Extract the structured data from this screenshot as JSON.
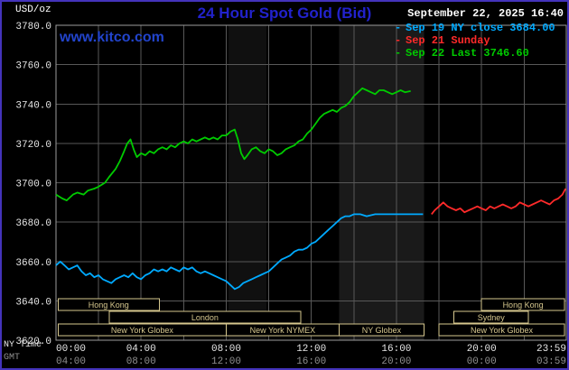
{
  "header": {
    "unit": "USD/oz",
    "title": "24 Hour Spot Gold (Bid)",
    "timestamp": "September 22, 2025 16:40",
    "watermark": "www.kitco.com"
  },
  "legend": {
    "items": [
      {
        "label": "Sep 19 NY close 3684.00",
        "color": "#00aaff"
      },
      {
        "label": "Sep 21 Sunday",
        "color": "#ff2a2a"
      },
      {
        "label": "Sep 22 Last 3746.60",
        "color": "#00cc00"
      }
    ]
  },
  "axes": {
    "x_row1_label": "NY Time",
    "x_row2_label": "GMT",
    "ny_ticks": [
      {
        "hour": 0,
        "label": "00:00"
      },
      {
        "hour": 4,
        "label": "04:00"
      },
      {
        "hour": 8,
        "label": "08:00"
      },
      {
        "hour": 12,
        "label": "12:00"
      },
      {
        "hour": 16,
        "label": "16:00"
      },
      {
        "hour": 20,
        "label": "20:00"
      },
      {
        "hour": 23.983,
        "label": "23:59"
      }
    ],
    "gmt_ticks": [
      {
        "hour": 0,
        "label": "04:00"
      },
      {
        "hour": 4,
        "label": "08:00"
      },
      {
        "hour": 8,
        "label": "12:00"
      },
      {
        "hour": 12,
        "label": "16:00"
      },
      {
        "hour": 16,
        "label": "20:00"
      },
      {
        "hour": 20,
        "label": "00:00"
      },
      {
        "hour": 23.983,
        "label": "03:59"
      }
    ]
  },
  "chart_data": {
    "type": "line",
    "title": "24 Hour Spot Gold (Bid)",
    "ylabel": "USD/oz",
    "xlim": [
      0,
      23.983
    ],
    "ylim": [
      3620,
      3780
    ],
    "grid": true,
    "legend_position": "top-right",
    "y_ticks": [
      {
        "value": 3780,
        "label": "3780.0"
      },
      {
        "value": 3760,
        "label": "3760.0"
      },
      {
        "value": 3740,
        "label": "3740.0"
      },
      {
        "value": 3720,
        "label": "3720.0"
      },
      {
        "value": 3700,
        "label": "3700.0"
      },
      {
        "value": 3680,
        "label": "3680.0"
      },
      {
        "value": 3660,
        "label": "3660.0"
      },
      {
        "value": 3640,
        "label": "3640.0"
      },
      {
        "value": 3620,
        "label": "3620.0"
      }
    ],
    "series": [
      {
        "key": "sep19",
        "name": "Sep 19 NY close",
        "close": 3684.0,
        "color": "#00aaff",
        "points": [
          [
            0,
            3658
          ],
          [
            0.2,
            3660
          ],
          [
            0.4,
            3658
          ],
          [
            0.6,
            3656
          ],
          [
            0.8,
            3657
          ],
          [
            1.0,
            3658
          ],
          [
            1.2,
            3655
          ],
          [
            1.4,
            3653
          ],
          [
            1.6,
            3654
          ],
          [
            1.8,
            3652
          ],
          [
            2.0,
            3653
          ],
          [
            2.2,
            3651
          ],
          [
            2.4,
            3650
          ],
          [
            2.6,
            3649
          ],
          [
            2.8,
            3651
          ],
          [
            3.0,
            3652
          ],
          [
            3.2,
            3653
          ],
          [
            3.4,
            3652
          ],
          [
            3.6,
            3654
          ],
          [
            3.8,
            3652
          ],
          [
            4.0,
            3651
          ],
          [
            4.2,
            3653
          ],
          [
            4.4,
            3654
          ],
          [
            4.6,
            3656
          ],
          [
            4.8,
            3655
          ],
          [
            5.0,
            3656
          ],
          [
            5.2,
            3655
          ],
          [
            5.4,
            3657
          ],
          [
            5.6,
            3656
          ],
          [
            5.8,
            3655
          ],
          [
            6.0,
            3657
          ],
          [
            6.2,
            3656
          ],
          [
            6.4,
            3657
          ],
          [
            6.6,
            3655
          ],
          [
            6.8,
            3654
          ],
          [
            7.0,
            3655
          ],
          [
            7.2,
            3654
          ],
          [
            7.4,
            3653
          ],
          [
            7.6,
            3652
          ],
          [
            7.8,
            3651
          ],
          [
            8.0,
            3650
          ],
          [
            8.2,
            3648
          ],
          [
            8.4,
            3646
          ],
          [
            8.6,
            3647
          ],
          [
            8.8,
            3649
          ],
          [
            9.0,
            3650
          ],
          [
            9.2,
            3651
          ],
          [
            9.4,
            3652
          ],
          [
            9.6,
            3653
          ],
          [
            9.8,
            3654
          ],
          [
            10.0,
            3655
          ],
          [
            10.2,
            3657
          ],
          [
            10.4,
            3659
          ],
          [
            10.6,
            3661
          ],
          [
            10.8,
            3662
          ],
          [
            11.0,
            3663
          ],
          [
            11.2,
            3665
          ],
          [
            11.4,
            3666
          ],
          [
            11.6,
            3666
          ],
          [
            11.8,
            3667
          ],
          [
            12.0,
            3669
          ],
          [
            12.2,
            3670
          ],
          [
            12.4,
            3672
          ],
          [
            12.6,
            3674
          ],
          [
            12.8,
            3676
          ],
          [
            13.0,
            3678
          ],
          [
            13.2,
            3680
          ],
          [
            13.4,
            3682
          ],
          [
            13.6,
            3683
          ],
          [
            13.8,
            3683
          ],
          [
            14.0,
            3684
          ],
          [
            14.3,
            3684
          ],
          [
            14.6,
            3683
          ],
          [
            15.0,
            3684
          ],
          [
            15.5,
            3684
          ],
          [
            16.0,
            3684
          ],
          [
            16.5,
            3684
          ],
          [
            17.0,
            3684
          ],
          [
            17.25,
            3684
          ]
        ]
      },
      {
        "key": "sep21",
        "name": "Sep 21 Sunday",
        "color": "#ff2a2a",
        "points": [
          [
            17.65,
            3684
          ],
          [
            17.8,
            3686
          ],
          [
            18.0,
            3688
          ],
          [
            18.2,
            3690
          ],
          [
            18.4,
            3688
          ],
          [
            18.6,
            3687
          ],
          [
            18.8,
            3686
          ],
          [
            19.0,
            3687
          ],
          [
            19.2,
            3685
          ],
          [
            19.4,
            3686
          ],
          [
            19.6,
            3687
          ],
          [
            19.8,
            3688
          ],
          [
            20.0,
            3687
          ],
          [
            20.2,
            3686
          ],
          [
            20.4,
            3688
          ],
          [
            20.6,
            3687
          ],
          [
            20.8,
            3688
          ],
          [
            21.0,
            3689
          ],
          [
            21.2,
            3688
          ],
          [
            21.4,
            3687
          ],
          [
            21.6,
            3688
          ],
          [
            21.8,
            3690
          ],
          [
            22.0,
            3689
          ],
          [
            22.2,
            3688
          ],
          [
            22.4,
            3689
          ],
          [
            22.6,
            3690
          ],
          [
            22.8,
            3691
          ],
          [
            23.0,
            3690
          ],
          [
            23.2,
            3689
          ],
          [
            23.4,
            3691
          ],
          [
            23.6,
            3692
          ],
          [
            23.8,
            3694
          ],
          [
            23.95,
            3697
          ]
        ]
      },
      {
        "key": "sep22",
        "name": "Sep 22 Last",
        "last": 3746.6,
        "color": "#00cc00",
        "points": [
          [
            0,
            3694
          ],
          [
            0.3,
            3692
          ],
          [
            0.5,
            3691
          ],
          [
            0.8,
            3694
          ],
          [
            1.0,
            3695
          ],
          [
            1.3,
            3694
          ],
          [
            1.5,
            3696
          ],
          [
            1.8,
            3697
          ],
          [
            2.0,
            3698
          ],
          [
            2.3,
            3700
          ],
          [
            2.5,
            3703
          ],
          [
            2.8,
            3707
          ],
          [
            3.0,
            3711
          ],
          [
            3.2,
            3716
          ],
          [
            3.35,
            3720
          ],
          [
            3.5,
            3722
          ],
          [
            3.65,
            3717
          ],
          [
            3.8,
            3713
          ],
          [
            4.0,
            3715
          ],
          [
            4.2,
            3714
          ],
          [
            4.4,
            3716
          ],
          [
            4.6,
            3715
          ],
          [
            4.8,
            3717
          ],
          [
            5.0,
            3718
          ],
          [
            5.2,
            3717
          ],
          [
            5.4,
            3719
          ],
          [
            5.6,
            3718
          ],
          [
            5.8,
            3720
          ],
          [
            6.0,
            3721
          ],
          [
            6.2,
            3720
          ],
          [
            6.4,
            3722
          ],
          [
            6.6,
            3721
          ],
          [
            6.8,
            3722
          ],
          [
            7.0,
            3723
          ],
          [
            7.2,
            3722
          ],
          [
            7.4,
            3723
          ],
          [
            7.6,
            3722
          ],
          [
            7.8,
            3724
          ],
          [
            8.0,
            3724
          ],
          [
            8.2,
            3726
          ],
          [
            8.4,
            3727
          ],
          [
            8.55,
            3722
          ],
          [
            8.7,
            3715
          ],
          [
            8.85,
            3712
          ],
          [
            9.0,
            3714
          ],
          [
            9.2,
            3717
          ],
          [
            9.4,
            3718
          ],
          [
            9.6,
            3716
          ],
          [
            9.8,
            3715
          ],
          [
            10.0,
            3717
          ],
          [
            10.2,
            3716
          ],
          [
            10.4,
            3714
          ],
          [
            10.6,
            3715
          ],
          [
            10.8,
            3717
          ],
          [
            11.0,
            3718
          ],
          [
            11.2,
            3719
          ],
          [
            11.4,
            3721
          ],
          [
            11.6,
            3722
          ],
          [
            11.8,
            3725
          ],
          [
            12.0,
            3727
          ],
          [
            12.2,
            3730
          ],
          [
            12.4,
            3733
          ],
          [
            12.6,
            3735
          ],
          [
            12.8,
            3736
          ],
          [
            13.0,
            3737
          ],
          [
            13.2,
            3736
          ],
          [
            13.4,
            3738
          ],
          [
            13.6,
            3739
          ],
          [
            13.8,
            3741
          ],
          [
            14.0,
            3744
          ],
          [
            14.2,
            3746
          ],
          [
            14.4,
            3748
          ],
          [
            14.6,
            3747
          ],
          [
            14.8,
            3746
          ],
          [
            15.0,
            3745
          ],
          [
            15.2,
            3747
          ],
          [
            15.4,
            3747
          ],
          [
            15.6,
            3746
          ],
          [
            15.8,
            3745
          ],
          [
            16.0,
            3746
          ],
          [
            16.2,
            3747
          ],
          [
            16.4,
            3746
          ],
          [
            16.67,
            3746.6
          ]
        ]
      }
    ],
    "sessions": [
      {
        "row": 0,
        "label": "Hong Kong",
        "start": 0.1,
        "end": 4.85
      },
      {
        "row": 0,
        "label": "Hong Kong",
        "start": 20.0,
        "end": 23.9
      },
      {
        "row": 1,
        "label": "London",
        "start": 2.5,
        "end": 11.5
      },
      {
        "row": 1,
        "label": "Sydney",
        "start": 18.7,
        "end": 22.2
      },
      {
        "row": 2,
        "label": "New York Globex",
        "start": 0.1,
        "end": 8.0
      },
      {
        "row": 2,
        "label": "New York NYMEX",
        "start": 8.0,
        "end": 13.3
      },
      {
        "row": 2,
        "label": "NY Globex",
        "start": 13.3,
        "end": 17.3
      },
      {
        "row": 2,
        "label": "New York Globex",
        "start": 18.0,
        "end": 23.9
      }
    ],
    "bands": [
      {
        "start": 8.1,
        "end": 9.9,
        "color": "#101010"
      },
      {
        "start": 13.3,
        "end": 17.3,
        "color": "#1a1a1a"
      }
    ],
    "colors": {
      "background": "#000000",
      "grid": "#585858",
      "frame": "#9c9c9c",
      "session": "#d6c78e",
      "tick_text": "#e6e6e6",
      "gmt_text": "#909090",
      "title": "#2222cc",
      "border": "#4433bb"
    }
  }
}
